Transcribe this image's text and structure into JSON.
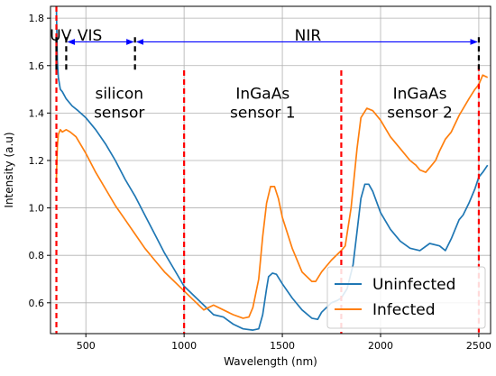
{
  "chart_data": {
    "type": "line",
    "xlabel": "Wavelength (nm)",
    "ylabel": "Intensity (a.u)",
    "xlim": [
      320,
      2560
    ],
    "ylim": [
      0.47,
      1.85
    ],
    "xticks": [
      500,
      1000,
      1500,
      2000,
      2500
    ],
    "yticks": [
      0.6,
      0.8,
      1.0,
      1.2,
      1.4,
      1.6,
      1.8
    ],
    "grid": true,
    "legend_position": "bottom-right",
    "series": [
      {
        "name": "Uninfected",
        "color": "#1f77b4",
        "points": [
          [
            350,
            1.85
          ],
          [
            355,
            1.62
          ],
          [
            360,
            1.55
          ],
          [
            370,
            1.5
          ],
          [
            380,
            1.49
          ],
          [
            400,
            1.46
          ],
          [
            430,
            1.43
          ],
          [
            460,
            1.41
          ],
          [
            500,
            1.38
          ],
          [
            550,
            1.33
          ],
          [
            600,
            1.27
          ],
          [
            650,
            1.2
          ],
          [
            700,
            1.12
          ],
          [
            750,
            1.05
          ],
          [
            800,
            0.97
          ],
          [
            850,
            0.89
          ],
          [
            900,
            0.81
          ],
          [
            950,
            0.74
          ],
          [
            1000,
            0.67
          ],
          [
            1050,
            0.63
          ],
          [
            1100,
            0.59
          ],
          [
            1150,
            0.55
          ],
          [
            1200,
            0.54
          ],
          [
            1250,
            0.51
          ],
          [
            1300,
            0.49
          ],
          [
            1350,
            0.485
          ],
          [
            1380,
            0.49
          ],
          [
            1400,
            0.55
          ],
          [
            1420,
            0.66
          ],
          [
            1430,
            0.71
          ],
          [
            1450,
            0.725
          ],
          [
            1470,
            0.72
          ],
          [
            1500,
            0.68
          ],
          [
            1550,
            0.62
          ],
          [
            1600,
            0.57
          ],
          [
            1650,
            0.535
          ],
          [
            1680,
            0.53
          ],
          [
            1700,
            0.56
          ],
          [
            1750,
            0.6
          ],
          [
            1780,
            0.61
          ],
          [
            1800,
            0.62
          ],
          [
            1830,
            0.66
          ],
          [
            1860,
            0.76
          ],
          [
            1880,
            0.9
          ],
          [
            1900,
            1.04
          ],
          [
            1920,
            1.1
          ],
          [
            1940,
            1.1
          ],
          [
            1960,
            1.07
          ],
          [
            2000,
            0.98
          ],
          [
            2050,
            0.91
          ],
          [
            2100,
            0.86
          ],
          [
            2150,
            0.83
          ],
          [
            2200,
            0.82
          ],
          [
            2250,
            0.85
          ],
          [
            2300,
            0.84
          ],
          [
            2330,
            0.82
          ],
          [
            2360,
            0.87
          ],
          [
            2400,
            0.95
          ],
          [
            2420,
            0.97
          ],
          [
            2450,
            1.02
          ],
          [
            2480,
            1.08
          ],
          [
            2500,
            1.13
          ],
          [
            2520,
            1.15
          ],
          [
            2545,
            1.18
          ]
        ]
      },
      {
        "name": "Infected",
        "color": "#ff7f0e",
        "points": [
          [
            350,
            1.12
          ],
          [
            355,
            1.26
          ],
          [
            360,
            1.31
          ],
          [
            370,
            1.33
          ],
          [
            380,
            1.32
          ],
          [
            400,
            1.33
          ],
          [
            420,
            1.32
          ],
          [
            450,
            1.3
          ],
          [
            500,
            1.23
          ],
          [
            550,
            1.15
          ],
          [
            600,
            1.08
          ],
          [
            650,
            1.01
          ],
          [
            700,
            0.95
          ],
          [
            750,
            0.89
          ],
          [
            800,
            0.83
          ],
          [
            850,
            0.78
          ],
          [
            900,
            0.73
          ],
          [
            950,
            0.69
          ],
          [
            1000,
            0.65
          ],
          [
            1050,
            0.61
          ],
          [
            1100,
            0.57
          ],
          [
            1150,
            0.59
          ],
          [
            1200,
            0.57
          ],
          [
            1250,
            0.55
          ],
          [
            1300,
            0.535
          ],
          [
            1330,
            0.54
          ],
          [
            1350,
            0.58
          ],
          [
            1380,
            0.7
          ],
          [
            1400,
            0.88
          ],
          [
            1420,
            1.02
          ],
          [
            1440,
            1.09
          ],
          [
            1460,
            1.09
          ],
          [
            1480,
            1.04
          ],
          [
            1500,
            0.96
          ],
          [
            1550,
            0.83
          ],
          [
            1600,
            0.73
          ],
          [
            1650,
            0.69
          ],
          [
            1670,
            0.69
          ],
          [
            1700,
            0.73
          ],
          [
            1750,
            0.78
          ],
          [
            1800,
            0.82
          ],
          [
            1820,
            0.84
          ],
          [
            1850,
            1.0
          ],
          [
            1880,
            1.25
          ],
          [
            1900,
            1.38
          ],
          [
            1930,
            1.42
          ],
          [
            1960,
            1.41
          ],
          [
            2000,
            1.37
          ],
          [
            2050,
            1.3
          ],
          [
            2100,
            1.25
          ],
          [
            2150,
            1.2
          ],
          [
            2180,
            1.18
          ],
          [
            2200,
            1.16
          ],
          [
            2230,
            1.15
          ],
          [
            2250,
            1.17
          ],
          [
            2280,
            1.2
          ],
          [
            2300,
            1.24
          ],
          [
            2330,
            1.29
          ],
          [
            2360,
            1.32
          ],
          [
            2400,
            1.39
          ],
          [
            2450,
            1.46
          ],
          [
            2480,
            1.5
          ],
          [
            2500,
            1.52
          ],
          [
            2520,
            1.56
          ],
          [
            2545,
            1.55
          ]
        ]
      }
    ],
    "vertical_lines": [
      {
        "x": 350,
        "color": "#ff0000",
        "y_top": 1.85
      },
      {
        "x": 1000,
        "color": "#ff0000",
        "y_top": 1.58
      },
      {
        "x": 1800,
        "color": "#ff0000",
        "y_top": 1.58
      },
      {
        "x": 2500,
        "color": "#ff0000",
        "y_top": 1.6
      }
    ],
    "boundary_markers": [
      {
        "x": 350,
        "y_top": 1.72,
        "y_bottom": 1.58
      },
      {
        "x": 400,
        "y_top": 1.72,
        "y_bottom": 1.58
      },
      {
        "x": 750,
        "y_top": 1.72,
        "y_bottom": 1.58
      },
      {
        "x": 2500,
        "y_top": 1.72,
        "y_bottom": 1.58
      }
    ],
    "range_arrows": [
      {
        "x_from": 400,
        "x_to": 750,
        "y": 1.7,
        "color": "#0000ff"
      },
      {
        "x_from": 750,
        "x_to": 2500,
        "y": 1.7,
        "color": "#0000ff"
      }
    ],
    "annotations": [
      {
        "text": "UV",
        "x": 372,
        "y": 1.705,
        "size": 15
      },
      {
        "text": "VIS",
        "x": 520,
        "y": 1.705,
        "size": 15
      },
      {
        "text": "NIR",
        "x": 1630,
        "y": 1.705,
        "size": 15
      },
      {
        "text": "silicon",
        "x": 670,
        "y": 1.46,
        "size": 17
      },
      {
        "text": "sensor",
        "x": 670,
        "y": 1.38,
        "size": 17
      },
      {
        "text": "InGaAs",
        "x": 1400,
        "y": 1.46,
        "size": 17
      },
      {
        "text": "sensor 1",
        "x": 1400,
        "y": 1.38,
        "size": 17
      },
      {
        "text": "InGaAs",
        "x": 2200,
        "y": 1.46,
        "size": 17
      },
      {
        "text": "sensor 2",
        "x": 2200,
        "y": 1.38,
        "size": 17
      }
    ]
  }
}
